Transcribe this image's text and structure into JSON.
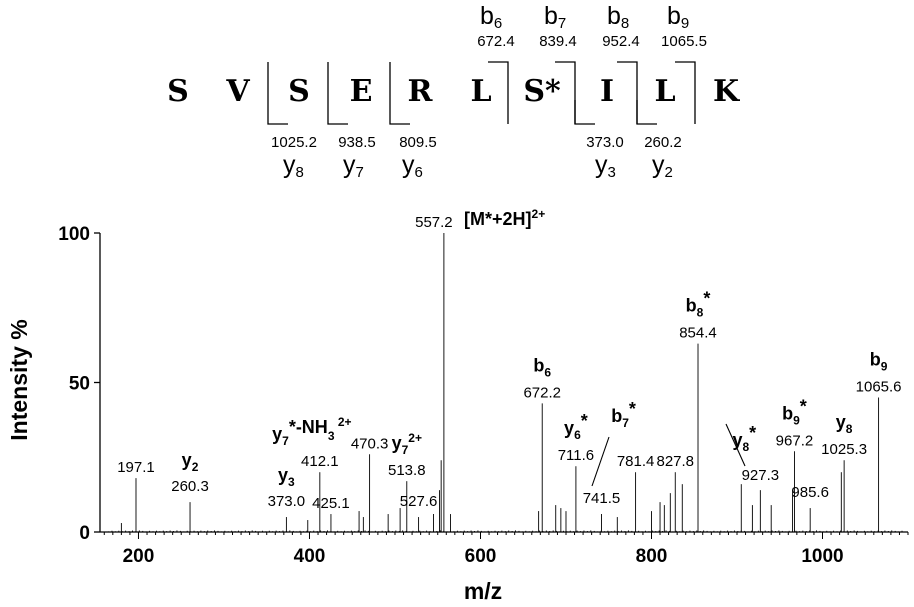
{
  "sequence": {
    "residues": [
      "S",
      "V",
      "S",
      "E",
      "R",
      "L",
      "S*",
      "I",
      "L",
      "K"
    ],
    "b_ions": [
      {
        "label": "b",
        "sub": "6",
        "mz": "672.4"
      },
      {
        "label": "b",
        "sub": "7",
        "mz": "839.4"
      },
      {
        "label": "b",
        "sub": "8",
        "mz": "952.4"
      },
      {
        "label": "b",
        "sub": "9",
        "mz": "1065.5"
      }
    ],
    "y_ions": [
      {
        "label": "y",
        "sub": "8",
        "mz": "1025.2"
      },
      {
        "label": "y",
        "sub": "7",
        "mz": "938.5"
      },
      {
        "label": "y",
        "sub": "6",
        "mz": "809.5"
      },
      {
        "label": "y",
        "sub": "3",
        "mz": "373.0"
      },
      {
        "label": "y",
        "sub": "2",
        "mz": "260.2"
      }
    ]
  },
  "chart_data": {
    "type": "bar",
    "title": "",
    "xlabel": "m/z",
    "ylabel": "Intensity %",
    "xlim": [
      155,
      1100
    ],
    "ylim": [
      0,
      100
    ],
    "xticks": [
      200,
      400,
      600,
      800,
      1000
    ],
    "yticks": [
      0,
      50,
      100
    ],
    "precursor_label": "[M*+2H]",
    "precursor_charge": "2+",
    "peaks": [
      {
        "mz": 180,
        "i": 3
      },
      {
        "mz": 197.1,
        "i": 18,
        "label": "197.1"
      },
      {
        "mz": 260.3,
        "i": 10,
        "label": "260.3",
        "ion": "y",
        "sub": "2"
      },
      {
        "mz": 373.0,
        "i": 5,
        "label": "373.0",
        "ion": "y",
        "sub": "3"
      },
      {
        "mz": 398,
        "i": 4
      },
      {
        "mz": 412.1,
        "i": 20,
        "label": "412.1",
        "ion": "y",
        "sub": "7",
        "sup": "*-NH",
        "sub2": "3",
        "sup2": "2+"
      },
      {
        "mz": 425.1,
        "i": 6,
        "label": "425.1"
      },
      {
        "mz": 458,
        "i": 7
      },
      {
        "mz": 463,
        "i": 5
      },
      {
        "mz": 470.3,
        "i": 26,
        "label": "470.3"
      },
      {
        "mz": 492,
        "i": 6
      },
      {
        "mz": 506,
        "i": 8
      },
      {
        "mz": 513.8,
        "i": 17,
        "label": "513.8",
        "ion": "y",
        "sub": "7",
        "sup": "2+"
      },
      {
        "mz": 527.6,
        "i": 5,
        "label": "527.6"
      },
      {
        "mz": 545,
        "i": 6
      },
      {
        "mz": 552,
        "i": 14
      },
      {
        "mz": 554,
        "i": 24
      },
      {
        "mz": 557.2,
        "i": 100,
        "label": "557.2"
      },
      {
        "mz": 565,
        "i": 6
      },
      {
        "mz": 668,
        "i": 7
      },
      {
        "mz": 672.2,
        "i": 43,
        "label": "672.2",
        "ion": "b",
        "sub": "6"
      },
      {
        "mz": 688,
        "i": 9
      },
      {
        "mz": 694,
        "i": 8
      },
      {
        "mz": 700,
        "i": 7
      },
      {
        "mz": 711.6,
        "i": 22,
        "label": "711.6",
        "ion": "y",
        "sub": "6",
        "sup": "*"
      },
      {
        "mz": 741.5,
        "i": 6,
        "label": "741.5"
      },
      {
        "mz": 760,
        "i": 5
      },
      {
        "mz": 781.4,
        "i": 20,
        "label": "781.4",
        "ion": "b",
        "sub": "7",
        "sup": "*"
      },
      {
        "mz": 800,
        "i": 7
      },
      {
        "mz": 810,
        "i": 10
      },
      {
        "mz": 815,
        "i": 9
      },
      {
        "mz": 822,
        "i": 13
      },
      {
        "mz": 827.8,
        "i": 20,
        "label": "827.8"
      },
      {
        "mz": 836,
        "i": 16
      },
      {
        "mz": 854.4,
        "i": 63,
        "label": "854.4",
        "ion": "b",
        "sub": "8",
        "sup": "*"
      },
      {
        "mz": 905,
        "i": 16
      },
      {
        "mz": 918,
        "i": 9
      },
      {
        "mz": 927.3,
        "i": 14,
        "label": "927.3",
        "ion": "y",
        "sub": "8",
        "sup": "*"
      },
      {
        "mz": 940,
        "i": 9
      },
      {
        "mz": 965,
        "i": 14
      },
      {
        "mz": 967.2,
        "i": 27,
        "label": "967.2",
        "ion": "b",
        "sub": "9",
        "sup": "*"
      },
      {
        "mz": 985.6,
        "i": 8,
        "label": "985.6"
      },
      {
        "mz": 1022,
        "i": 20
      },
      {
        "mz": 1025.3,
        "i": 24,
        "label": "1025.3",
        "ion": "y",
        "sub": "8"
      },
      {
        "mz": 1065.6,
        "i": 45,
        "label": "1065.6",
        "ion": "b",
        "sub": "9"
      }
    ]
  }
}
